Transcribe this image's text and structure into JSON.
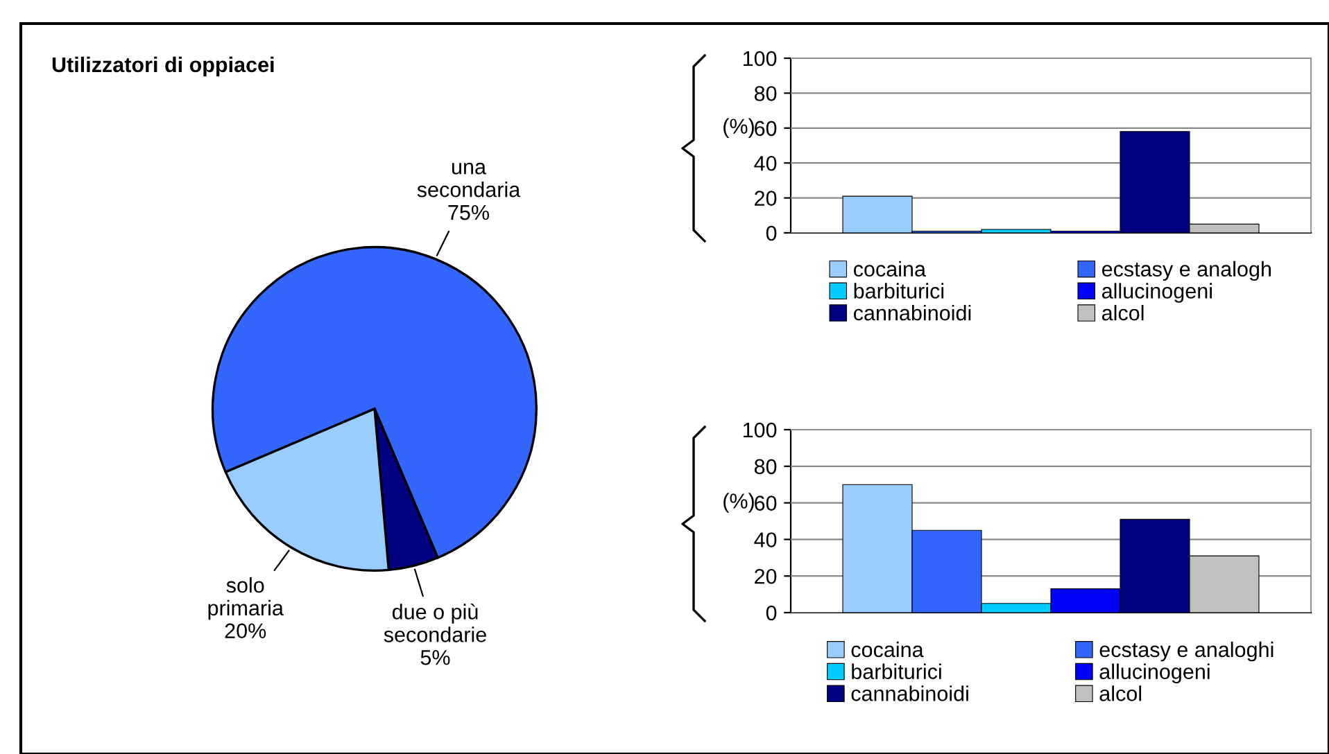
{
  "chart_data": [
    {
      "type": "pie",
      "title": "Utilizzatori di oppiacei",
      "categories": [
        "una secondaria",
        "due o più secondarie",
        "solo primaria"
      ],
      "values": [
        75,
        5,
        20
      ],
      "value_labels": [
        "75%",
        "5%",
        "20%"
      ],
      "colors": [
        "#3366ff",
        "#000080",
        "#99ccff"
      ]
    },
    {
      "type": "bar",
      "ylabel": "(%)",
      "categories": [
        null
      ],
      "ylim": [
        0,
        100
      ],
      "yticks": [
        0,
        20,
        40,
        60,
        80,
        100
      ],
      "grid": "y",
      "legend": "bottom",
      "series": [
        {
          "name": "cocaina",
          "color": "#99ccff",
          "values": [
            21
          ]
        },
        {
          "name": "ecstasy e analogh",
          "color": "#3366ff",
          "values": [
            1
          ]
        },
        {
          "name": "barbiturici",
          "color": "#00ccff",
          "values": [
            2
          ]
        },
        {
          "name": "allucinogeni",
          "color": "#0000ff",
          "values": [
            1
          ]
        },
        {
          "name": "cannabinoidi",
          "color": "#000080",
          "values": [
            58
          ]
        },
        {
          "name": "alcol",
          "color": "#c0c0c0",
          "values": [
            5
          ]
        }
      ]
    },
    {
      "type": "bar",
      "ylabel": "(%)",
      "categories": [
        null
      ],
      "ylim": [
        0,
        100
      ],
      "yticks": [
        0,
        20,
        40,
        60,
        80,
        100
      ],
      "grid": "y",
      "legend": "bottom",
      "series": [
        {
          "name": "cocaina",
          "color": "#99ccff",
          "values": [
            70
          ]
        },
        {
          "name": "ecstasy e analoghi",
          "color": "#3366ff",
          "values": [
            45
          ]
        },
        {
          "name": "barbiturici",
          "color": "#00ccff",
          "values": [
            5
          ]
        },
        {
          "name": "allucinogeni",
          "color": "#0000ff",
          "values": [
            13
          ]
        },
        {
          "name": "cannabinoidi",
          "color": "#000080",
          "values": [
            51
          ]
        },
        {
          "name": "alcol",
          "color": "#c0c0c0",
          "values": [
            31
          ]
        }
      ]
    }
  ]
}
